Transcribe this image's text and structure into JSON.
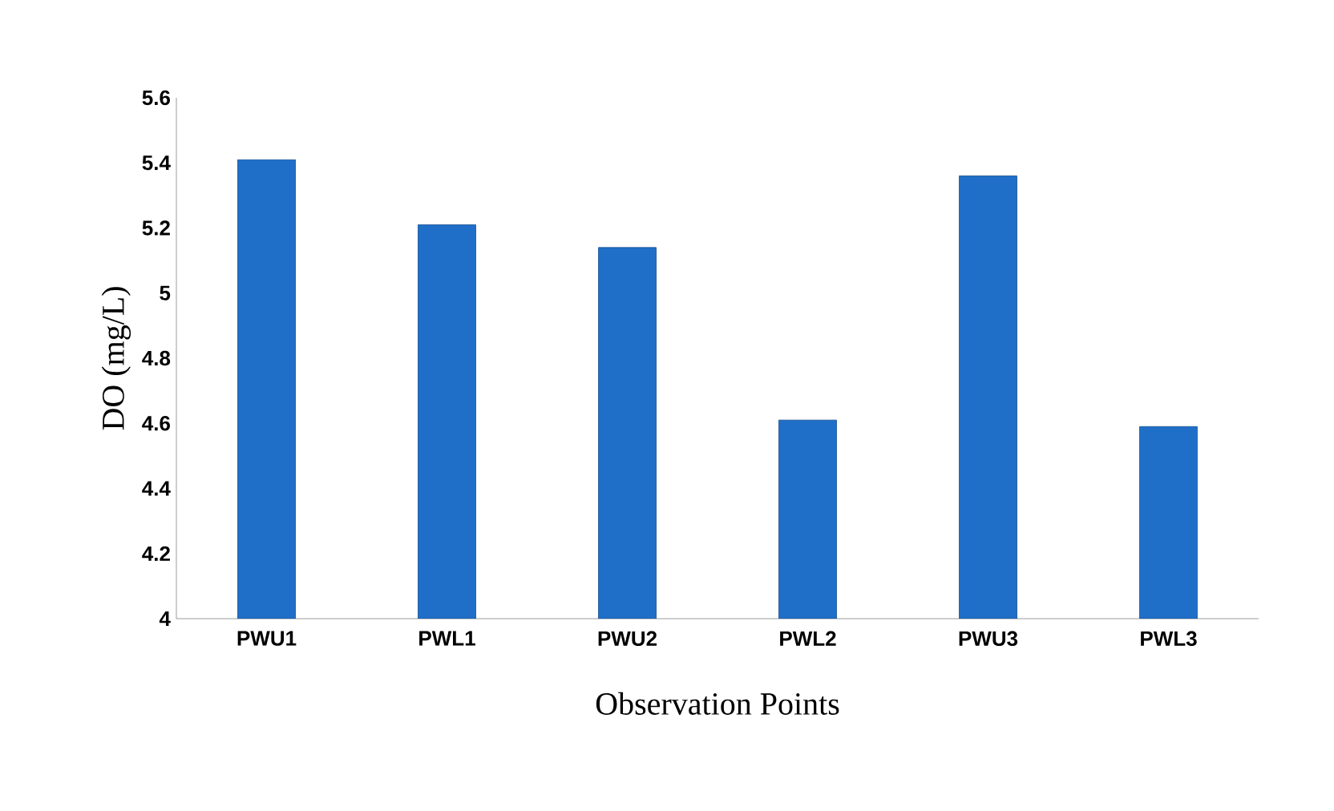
{
  "chart_data": {
    "type": "bar",
    "xlabel": "Observation Points",
    "ylabel": "DO (mg/L)",
    "categories": [
      "PWU1",
      "PWL1",
      "PWU2",
      "PWL2",
      "PWU3",
      "PWL3"
    ],
    "values": [
      5.41,
      5.21,
      5.14,
      4.61,
      5.36,
      4.59
    ],
    "color": "#1f6fc8",
    "ylim": [
      4,
      5.6
    ],
    "yticks": [
      4,
      4.2,
      4.4,
      4.6,
      4.8,
      5,
      5.2,
      5.4,
      5.6
    ],
    "grid": false
  }
}
